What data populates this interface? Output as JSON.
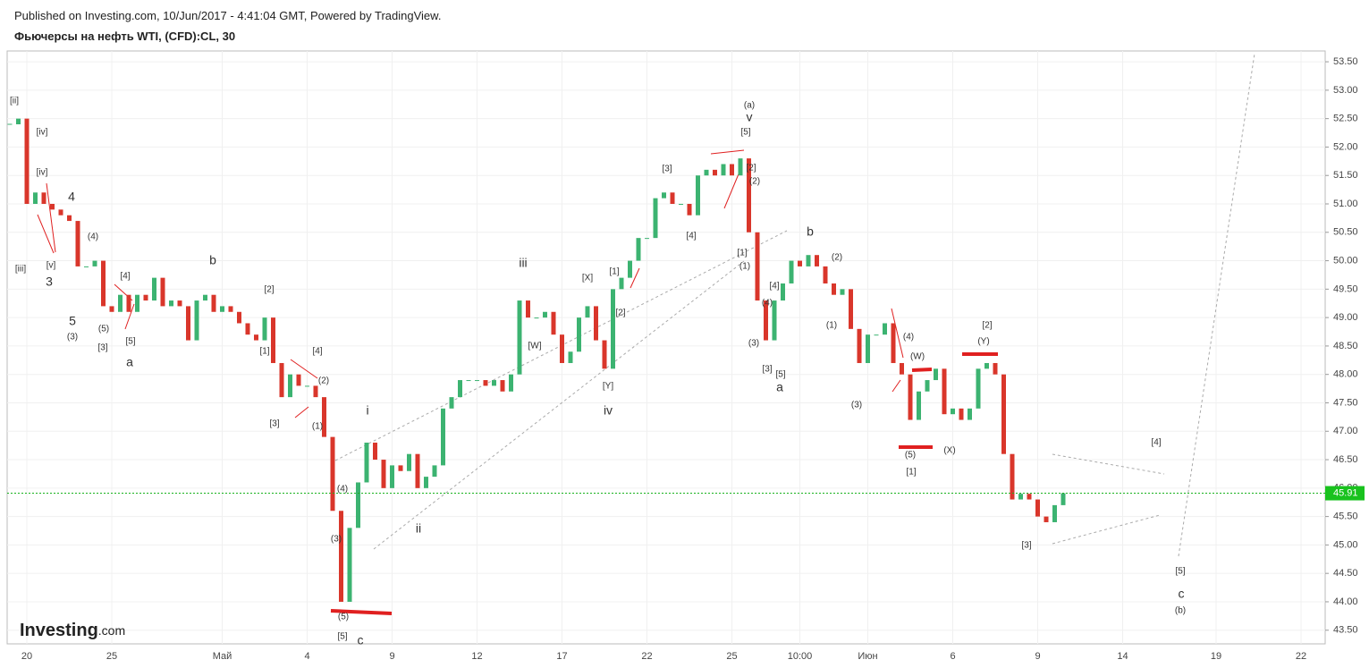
{
  "header": {
    "published": "Published on Investing.com, 10/Jun/2017 - 4:41:04 GMT, Powered by TradingView.",
    "instrument": "Фьючерсы на нефть WTI, (CFD):CL, 30"
  },
  "logo": {
    "brand": "Investing",
    "suffix": ".com"
  },
  "chart_data": {
    "type": "candlestick-close",
    "up_color": "#3cb371",
    "down_color": "#d9362b",
    "categories": [
      null,
      null,
      "20",
      null,
      null,
      null,
      null,
      null,
      null,
      null,
      null,
      null,
      "25",
      null,
      null,
      null,
      null,
      null,
      null,
      null,
      null,
      null,
      null,
      null,
      null,
      "Май",
      null,
      null,
      null,
      null,
      null,
      null,
      null,
      null,
      null,
      "4",
      null,
      null,
      null,
      null,
      null,
      null,
      null,
      null,
      null,
      "9",
      null,
      null,
      null,
      null,
      null,
      null,
      null,
      null,
      null,
      "12",
      null,
      null,
      null,
      null,
      null,
      null,
      null,
      null,
      null,
      "17",
      null,
      null,
      null,
      null,
      null,
      null,
      null,
      null,
      null,
      "22",
      null,
      null,
      null,
      null,
      null,
      null,
      null,
      null,
      null,
      "25",
      null,
      null,
      null,
      null,
      null,
      null,
      null,
      "10:00",
      null,
      null,
      null,
      null,
      null,
      null,
      null,
      "Июн",
      null,
      null,
      null,
      null,
      null,
      null,
      null,
      null,
      null,
      "6",
      null,
      null,
      null,
      null,
      null,
      null,
      null,
      null,
      null,
      "9",
      null,
      null,
      null,
      null,
      null,
      null,
      null,
      null,
      null,
      "14",
      null,
      null,
      null,
      null,
      null,
      null,
      null,
      null,
      null,
      null,
      "19",
      null,
      null,
      null,
      null,
      null,
      null,
      null,
      null,
      null,
      "22",
      null,
      null,
      null
    ],
    "values": [
      52.4,
      52.5,
      51.0,
      51.2,
      51.0,
      50.9,
      50.8,
      50.7,
      49.9,
      49.9,
      50.0,
      49.2,
      49.1,
      49.4,
      49.1,
      49.4,
      49.3,
      49.7,
      49.2,
      49.3,
      49.2,
      48.6,
      49.3,
      49.4,
      49.1,
      49.2,
      49.1,
      48.9,
      48.7,
      48.6,
      49.0,
      48.2,
      47.6,
      48.0,
      47.8,
      47.8,
      47.6,
      46.9,
      45.6,
      44.0,
      45.3,
      46.1,
      46.8,
      46.5,
      46.0,
      46.4,
      46.3,
      46.6,
      46.0,
      46.2,
      46.4,
      47.4,
      47.6,
      47.9,
      47.9,
      47.9,
      47.8,
      47.9,
      47.7,
      48.0,
      49.3,
      49.0,
      49.0,
      49.1,
      48.7,
      48.2,
      48.4,
      49.0,
      49.2,
      48.6,
      48.1,
      49.5,
      49.7,
      50.0,
      50.4,
      50.4,
      51.1,
      51.2,
      51.0,
      51.0,
      50.8,
      51.5,
      51.6,
      51.5,
      51.7,
      51.5,
      51.8,
      50.5,
      49.3,
      48.6,
      49.3,
      49.6,
      50.0,
      49.9,
      50.1,
      49.9,
      49.6,
      49.4,
      49.5,
      48.8,
      48.2,
      48.7,
      48.7,
      48.9,
      48.2,
      48.0,
      47.2,
      47.7,
      47.9,
      48.1,
      47.3,
      47.4,
      47.2,
      47.4,
      48.1,
      48.2,
      48.0,
      46.6,
      45.8,
      45.9,
      45.8,
      45.5,
      45.4,
      45.7,
      45.91,
      null,
      null,
      null,
      null,
      null,
      null,
      null,
      null,
      null,
      null,
      null,
      null,
      null,
      null,
      null,
      null,
      null,
      null,
      null,
      null,
      null,
      null,
      null,
      null,
      null,
      null,
      null,
      null,
      null,
      null,
      null
    ],
    "ylim": [
      43.26,
      53.69
    ],
    "yticks": [
      {
        "value": 43.5,
        "label": "43.50"
      },
      {
        "value": 44,
        "label": "44.00"
      },
      {
        "value": 44.5,
        "label": "44.50"
      },
      {
        "value": 45,
        "label": "45.00"
      },
      {
        "value": 45.5,
        "label": "45.50"
      },
      {
        "value": 46,
        "label": "46.00"
      },
      {
        "value": 46.5,
        "label": "46.50"
      },
      {
        "value": 47,
        "label": "47.00"
      },
      {
        "value": 47.5,
        "label": "47.50"
      },
      {
        "value": 48,
        "label": "48.00"
      },
      {
        "value": 48.5,
        "label": "48.50"
      },
      {
        "value": 49,
        "label": "49.00"
      },
      {
        "value": 49.5,
        "label": "49.50"
      },
      {
        "value": 50,
        "label": "50.00"
      },
      {
        "value": 50.5,
        "label": "50.50"
      },
      {
        "value": 51,
        "label": "51.00"
      },
      {
        "value": 51.5,
        "label": "51.50"
      },
      {
        "value": 52,
        "label": "52.00"
      },
      {
        "value": 52.5,
        "label": "52.50"
      },
      {
        "value": 53,
        "label": "53.00"
      },
      {
        "value": 53.5,
        "label": "53.50"
      }
    ],
    "last_price": {
      "value": 45.91,
      "label": "45.91"
    },
    "grid": true,
    "annotations": [
      "[ii]",
      "[iv]",
      "[iv]",
      "[iii]",
      "[v]",
      "3",
      "4",
      "(4)",
      "5",
      "(3)",
      "(5)",
      "[3]",
      "[4]",
      "[5]",
      "a",
      "b",
      "[2]",
      "[1]",
      "[4]",
      "(2)",
      "[3]",
      "(1)",
      "i",
      "(4)",
      "(3)",
      "(5)",
      "[5]",
      "c",
      "ii",
      "iii",
      "[X]",
      "[1]",
      "[W]",
      "[2]",
      "[Y]",
      "iv",
      "[3]",
      "[4]",
      "(a)",
      "v",
      "[5]",
      "[2]",
      "(2)",
      "[1]",
      "(1)",
      "[4]",
      "(4)",
      "(3)",
      "[3]",
      "[5]",
      "a",
      "b",
      "(2)",
      "(1)",
      "(3)",
      "(4)",
      "(W)",
      "(5)",
      "[1]",
      "(X)",
      "[2]",
      "(Y)",
      "[3]",
      "[4]",
      "[5]",
      "c",
      "(b)"
    ]
  }
}
